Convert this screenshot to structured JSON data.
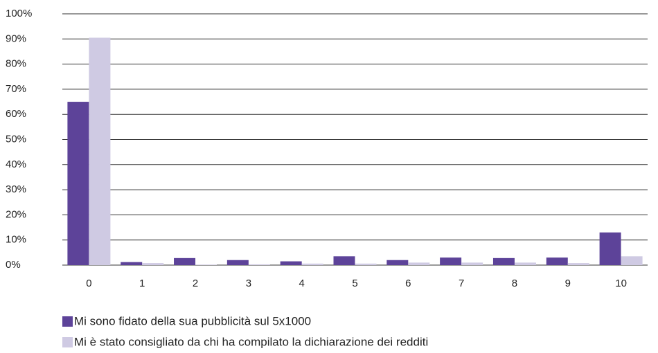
{
  "chart_data": {
    "type": "bar",
    "categories": [
      "0",
      "1",
      "2",
      "3",
      "4",
      "5",
      "6",
      "7",
      "8",
      "9",
      "10"
    ],
    "series": [
      {
        "name": "Mi sono fidato della sua pubblicità sul 5x1000",
        "color": "#5d4399",
        "values": [
          65,
          1.2,
          2.8,
          2,
          1.5,
          3.5,
          2,
          3,
          2.8,
          3,
          13
        ]
      },
      {
        "name": "Mi è stato consigliato da chi ha compilato la dichiarazione dei redditi",
        "color": "#cfcae3",
        "values": [
          90.5,
          0.8,
          0.2,
          0.3,
          0.6,
          0.6,
          1,
          1,
          1,
          0.8,
          3.5
        ]
      }
    ],
    "ylim": [
      0,
      100
    ],
    "yticks": [
      {
        "value": 0,
        "label": "0%"
      },
      {
        "value": 10,
        "label": "10%"
      },
      {
        "value": 20,
        "label": "20%"
      },
      {
        "value": 30,
        "label": "30%"
      },
      {
        "value": 40,
        "label": "40%"
      },
      {
        "value": 50,
        "label": "50%"
      },
      {
        "value": 60,
        "label": "60%"
      },
      {
        "value": 70,
        "label": "70%"
      },
      {
        "value": 80,
        "label": "80%"
      },
      {
        "value": 90,
        "label": "90%"
      },
      {
        "value": 100,
        "label": "100%"
      }
    ],
    "grid": true
  }
}
